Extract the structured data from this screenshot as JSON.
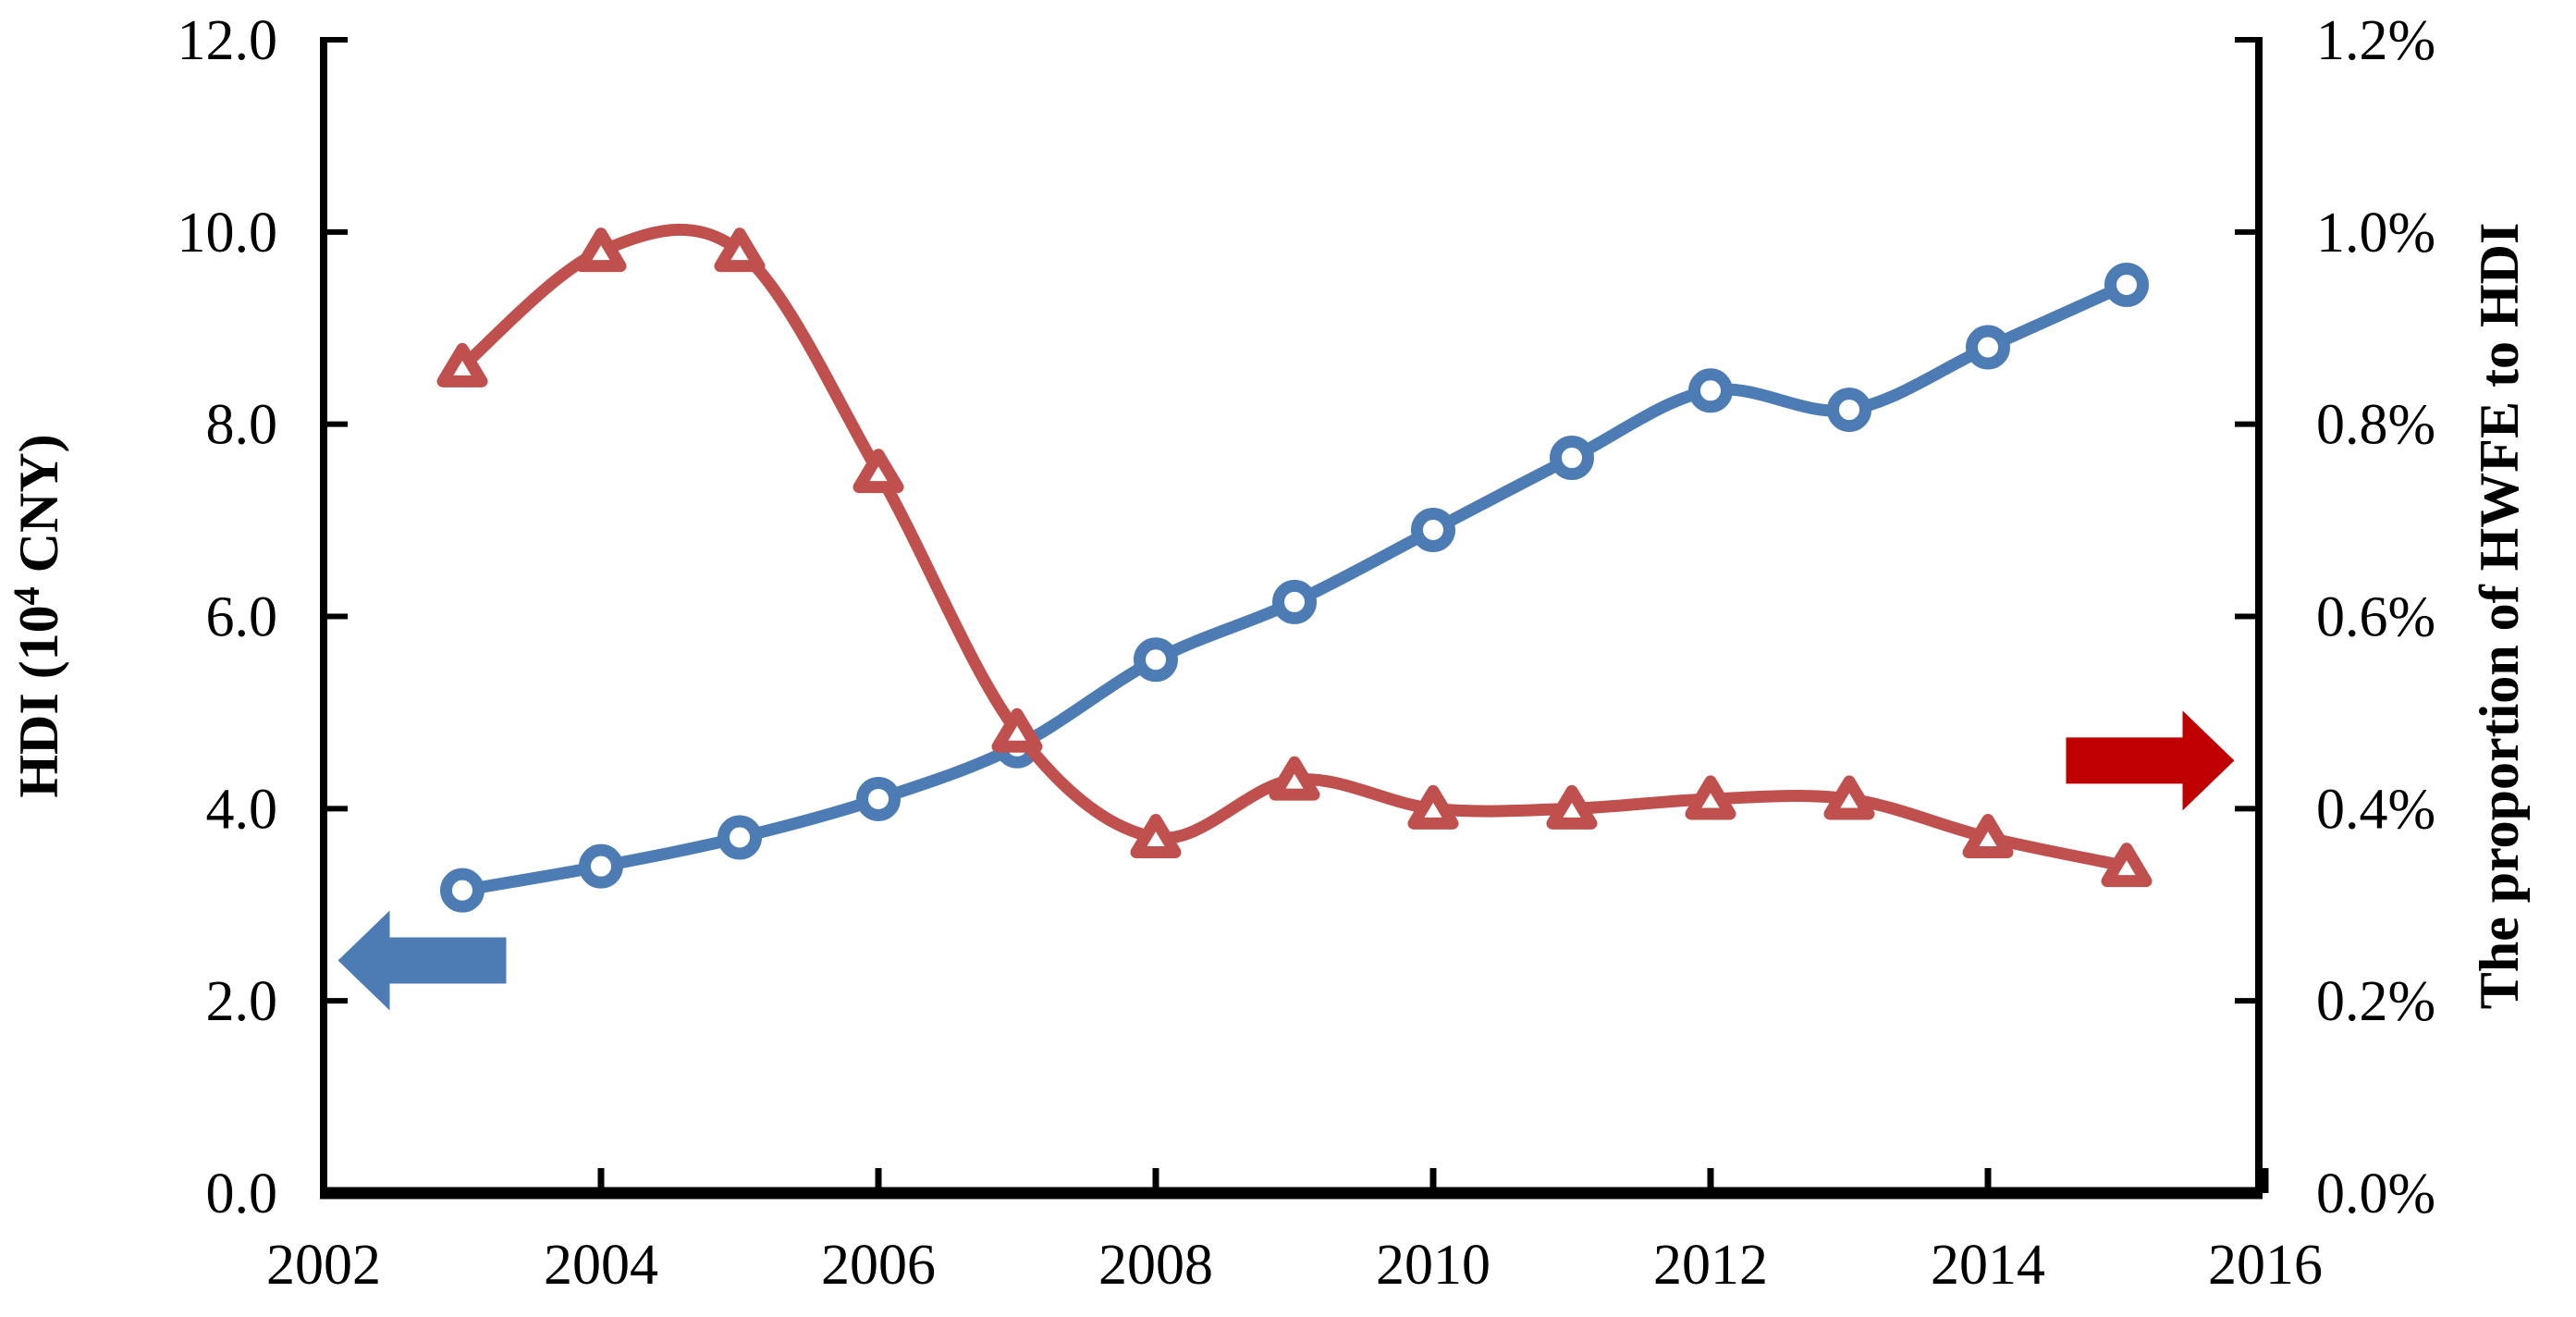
{
  "chart_data": {
    "type": "line",
    "title": "",
    "legend": "none",
    "grid": "off",
    "background": "#ffffff",
    "x": [
      2003,
      2004,
      2005,
      2006,
      2007,
      2008,
      2009,
      2010,
      2011,
      2012,
      2013,
      2014,
      2015
    ],
    "x_axis": {
      "min": 2002,
      "max": 2016,
      "tick_step": 2,
      "tick_labels": [
        "2002",
        "2004",
        "2006",
        "2008",
        "2010",
        "2012",
        "2014",
        "2016"
      ]
    },
    "y_left": {
      "label": "HDI (10⁴ CNY)",
      "label_prefix": "HDI (10",
      "label_sup": "4",
      "label_suffix": " CNY)",
      "min": 0,
      "max": 12,
      "tick_step": 2,
      "tick_labels": [
        "12.0",
        "10.0",
        "8.0",
        "6.0",
        "4.0",
        "2.0",
        "0.0"
      ]
    },
    "y_right": {
      "label": "The proportion of HWFE to HDI",
      "min": 0,
      "max": 1.2,
      "tick_step": 0.2,
      "unit": "%",
      "tick_labels": [
        "1.2%",
        "1.0%",
        "0.8%",
        "0.6%",
        "0.4%",
        "0.2%",
        "0.0%"
      ]
    },
    "series": [
      {
        "name": "HDI",
        "axis": "left",
        "unit": "10^4 CNY",
        "color": "#4D7CB5",
        "marker": "circle",
        "marker_fill": "#ffffff",
        "values": [
          3.15,
          3.4,
          3.7,
          4.1,
          4.65,
          5.55,
          6.15,
          6.9,
          7.65,
          8.35,
          8.15,
          8.8,
          9.45
        ]
      },
      {
        "name": "The proportion of HWFE to HDI",
        "axis": "right",
        "unit": "%",
        "color": "#C0504D",
        "marker": "triangle",
        "marker_fill": "#ffffff",
        "values": [
          0.86,
          0.98,
          0.98,
          0.75,
          0.48,
          0.37,
          0.43,
          0.4,
          0.4,
          0.41,
          0.41,
          0.37,
          0.34
        ]
      }
    ],
    "annotations": [
      {
        "name": "left-axis-arrow",
        "shape": "arrow",
        "direction": "left",
        "color": "#4D7CB5",
        "axis": "left",
        "year_center": 2002.71,
        "value": 2.42
      },
      {
        "name": "right-axis-arrow",
        "shape": "arrow",
        "direction": "right",
        "color": "#C00000",
        "axis": "right",
        "year_center": 2015.17,
        "value": 0.45
      }
    ],
    "axis_color": "#000000"
  }
}
